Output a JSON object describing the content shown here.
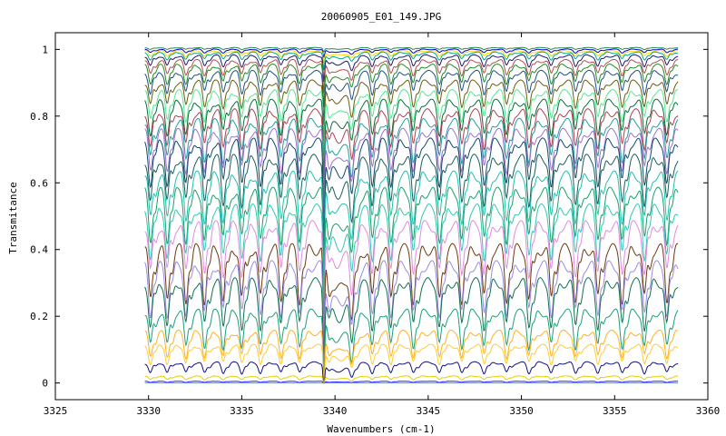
{
  "chart_data": {
    "type": "line",
    "title": "20060905_E01_149.JPG",
    "xlabel": "Wavenumbers (cm-1)",
    "ylabel": "Transmitance",
    "xlim": [
      3325,
      3360
    ],
    "ylim": [
      -0.05,
      1.05
    ],
    "data_x_range": [
      3329.8,
      3358.4
    ],
    "x_ticks": [
      3325,
      3330,
      3335,
      3340,
      3345,
      3350,
      3355,
      3360
    ],
    "x_tick_labels": [
      "3325",
      "3330",
      "3335",
      "3340",
      "3345",
      "3350",
      "3355",
      "3360"
    ],
    "y_ticks": [
      0,
      0.2,
      0.4,
      0.6,
      0.8,
      1
    ],
    "y_tick_labels": [
      "0",
      "0.2",
      "0.4",
      "0.6",
      "0.8",
      "1"
    ],
    "grid": false,
    "legend": "none",
    "absorption_lines_cm1": [
      3330.1,
      3331.0,
      3332.0,
      3333.0,
      3334.0,
      3335.0,
      3336.0,
      3337.1,
      3338.1,
      3339.4,
      3340.9,
      3342.0,
      3343.0,
      3344.2,
      3345.6,
      3346.8,
      3348.0,
      3349.2,
      3350.4,
      3351.6,
      3352.9,
      3354.1,
      3355.4,
      3356.6,
      3357.8
    ],
    "series": [
      {
        "baseline": 1.005,
        "depth": 0.005,
        "color": "#2a8a50"
      },
      {
        "baseline": 1.0,
        "depth": 0.01,
        "color": "#0000cc"
      },
      {
        "baseline": 0.995,
        "depth": 0.015,
        "color": "#ffd700"
      },
      {
        "baseline": 0.99,
        "depth": 0.02,
        "color": "#00aa88"
      },
      {
        "baseline": 0.98,
        "depth": 0.03,
        "color": "#1a1a6e"
      },
      {
        "baseline": 0.965,
        "depth": 0.04,
        "color": "#b05050"
      },
      {
        "baseline": 0.95,
        "depth": 0.05,
        "color": "#228b22"
      },
      {
        "baseline": 0.93,
        "depth": 0.06,
        "color": "#205080"
      },
      {
        "baseline": 0.9,
        "depth": 0.07,
        "color": "#6a5d10"
      },
      {
        "baseline": 0.87,
        "depth": 0.08,
        "color": "#50e890"
      },
      {
        "baseline": 0.84,
        "depth": 0.09,
        "color": "#0a6e3a"
      },
      {
        "baseline": 0.81,
        "depth": 0.1,
        "color": "#b04050"
      },
      {
        "baseline": 0.78,
        "depth": 0.11,
        "color": "#20a0a0"
      },
      {
        "baseline": 0.75,
        "depth": 0.11,
        "color": "#a06fd0"
      },
      {
        "baseline": 0.72,
        "depth": 0.12,
        "color": "#104a6a"
      },
      {
        "baseline": 0.67,
        "depth": 0.13,
        "color": "#1a5e5e"
      },
      {
        "baseline": 0.62,
        "depth": 0.13,
        "color": "#20c0b0"
      },
      {
        "baseline": 0.57,
        "depth": 0.14,
        "color": "#1a9f6a"
      },
      {
        "baseline": 0.52,
        "depth": 0.14,
        "color": "#30c8b8"
      },
      {
        "baseline": 0.47,
        "depth": 0.14,
        "color": "#e08ae0"
      },
      {
        "baseline": 0.4,
        "depth": 0.15,
        "color": "#6b3a10"
      },
      {
        "baseline": 0.35,
        "depth": 0.14,
        "color": "#9a8ae8"
      },
      {
        "baseline": 0.3,
        "depth": 0.13,
        "color": "#107050"
      },
      {
        "baseline": 0.21,
        "depth": 0.1,
        "color": "#1a9f7a"
      },
      {
        "baseline": 0.15,
        "depth": 0.07,
        "color": "#ffb020"
      },
      {
        "baseline": 0.11,
        "depth": 0.05,
        "color": "#ffcc30"
      },
      {
        "baseline": 0.06,
        "depth": 0.03,
        "color": "#101080"
      },
      {
        "baseline": 0.02,
        "depth": 0.01,
        "color": "#e0d000"
      },
      {
        "baseline": 0.005,
        "depth": 0.003,
        "color": "#2020ff"
      },
      {
        "baseline": 0.0,
        "depth": 0.0,
        "color": "#30c060"
      }
    ]
  }
}
